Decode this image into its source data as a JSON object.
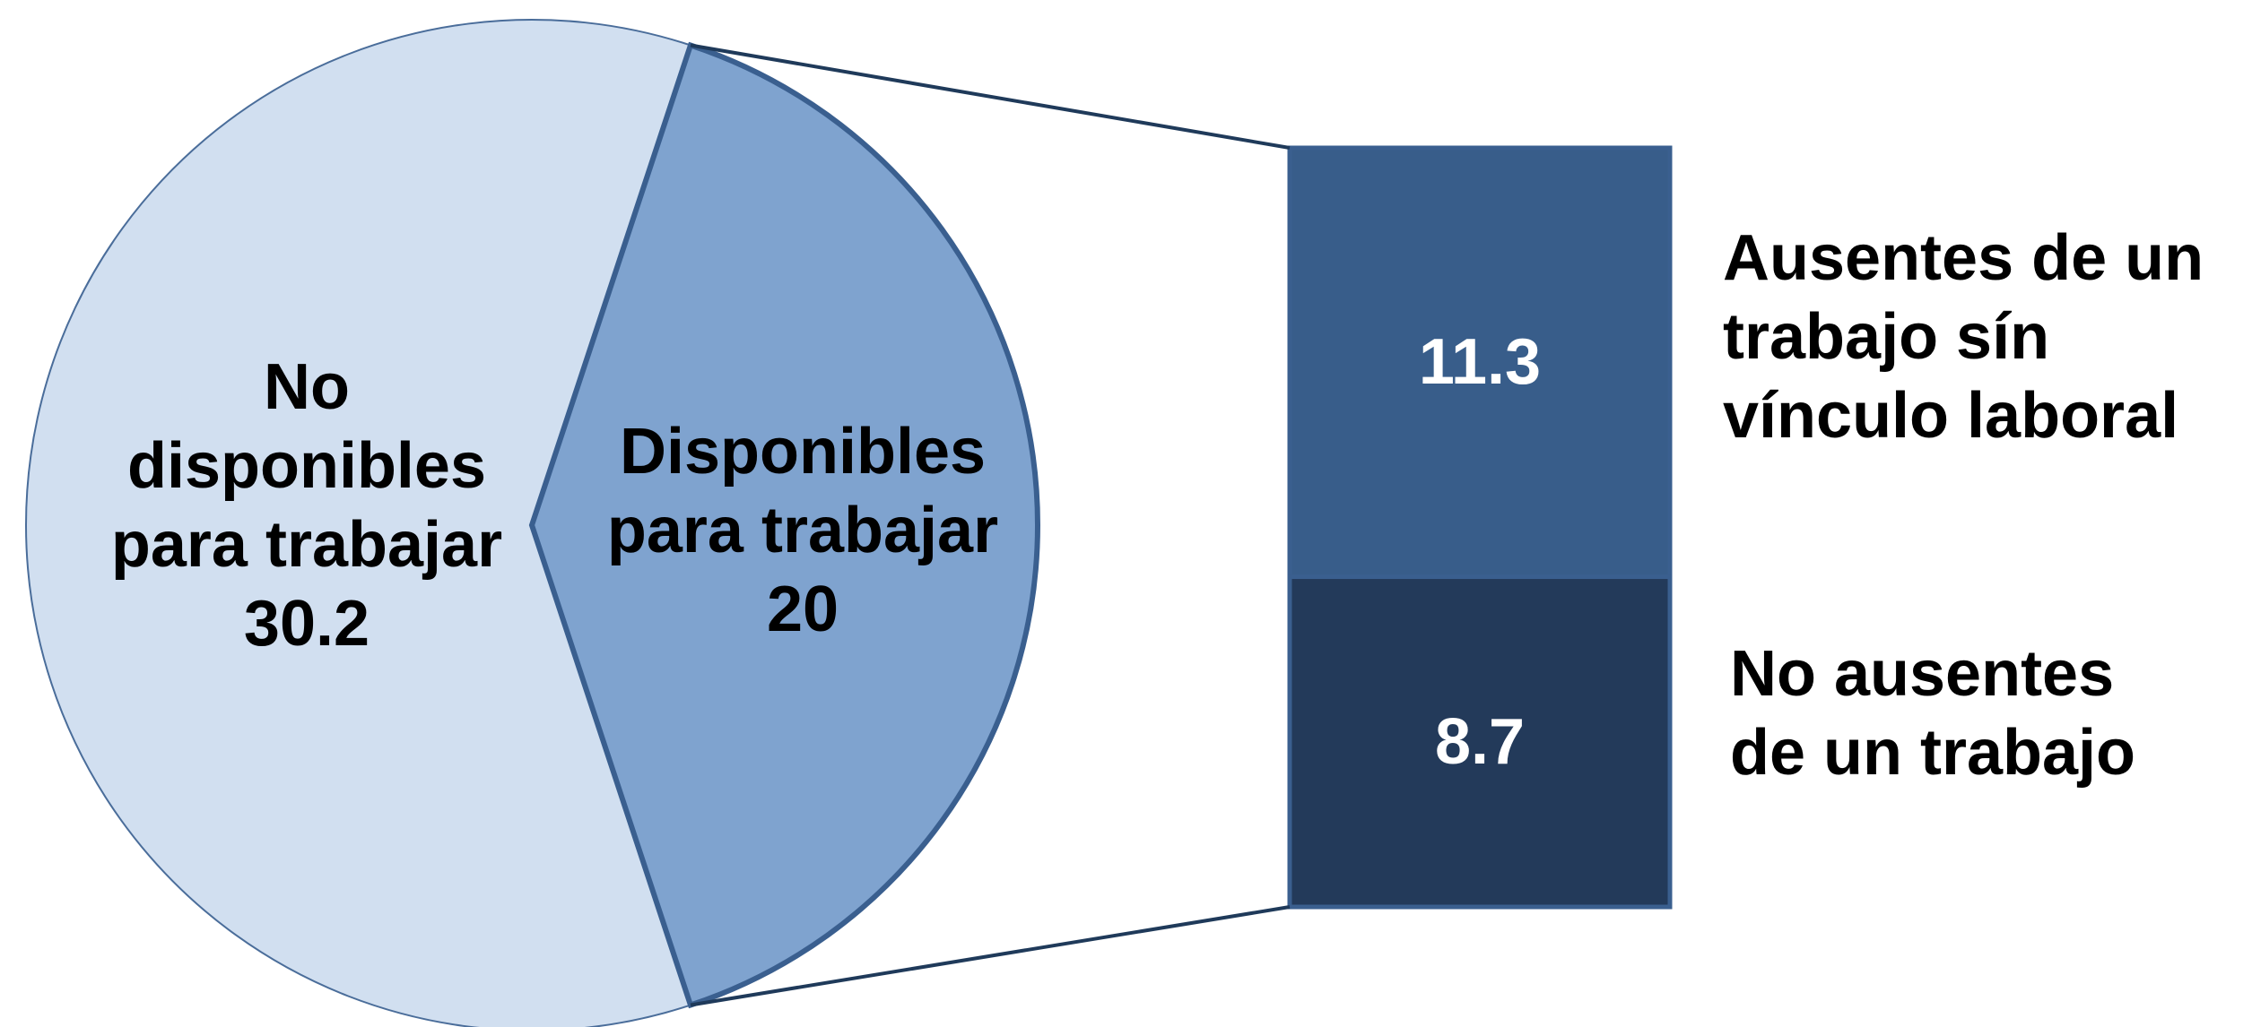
{
  "chart_data": {
    "type": "pie-of-bar",
    "pie": {
      "categories": [
        "No disponibles para trabajar",
        "Disponibles para trabajar"
      ],
      "values": [
        30.2,
        20.0
      ],
      "colors": [
        "#d1dff0",
        "#7fa3cf"
      ]
    },
    "bar": {
      "categories": [
        "Ausentes de un trabajo sín vínculo laboral",
        "No ausentes de un trabajo"
      ],
      "values": [
        11.3,
        8.7
      ],
      "colors": [
        "#385d8a",
        "#233a5a"
      ]
    }
  }
}
